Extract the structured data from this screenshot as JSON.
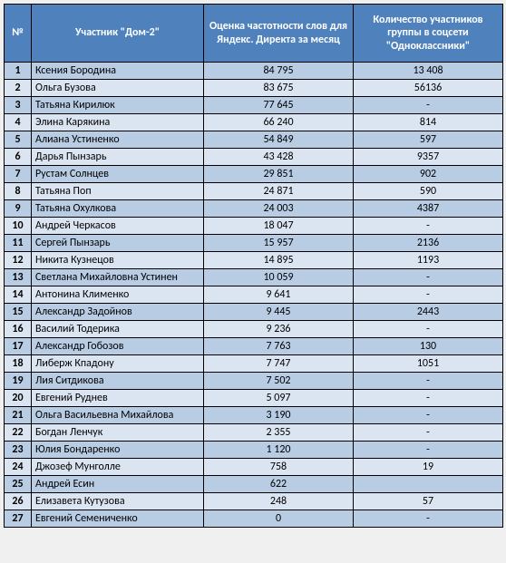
{
  "table": {
    "columns": [
      "№",
      "Участник \"Дом-2\"",
      "Оценка частотности слов для Яндекс. Директа за месяц",
      "Количество участников группы в соцсети \"Одноклассники\""
    ],
    "colors": {
      "header_bg": "#4f81bd",
      "header_fg": "#ffffff",
      "row_odd_bg": "#b8cce4",
      "row_even_bg": "#dbe5f1",
      "border": "#000000"
    },
    "fontsize": 12,
    "rows": [
      {
        "n": "1",
        "name": "Ксения Бородина",
        "freq": "84 795",
        "grp": "13 408"
      },
      {
        "n": "2",
        "name": "Ольга Бузова",
        "freq": "83 675",
        "grp": "56136"
      },
      {
        "n": "3",
        "name": "Татьяна Кирилюк",
        "freq": "77 645",
        "grp": "-"
      },
      {
        "n": "4",
        "name": "Элина Карякина",
        "freq": "66 240",
        "grp": "814"
      },
      {
        "n": "5",
        "name": "Алиана Устиненко",
        "freq": "54 849",
        "grp": "597"
      },
      {
        "n": "6",
        "name": "Дарья Пынзарь",
        "freq": "43 428",
        "grp": "9357"
      },
      {
        "n": "7",
        "name": "Рустам Солнцев",
        "freq": "29 851",
        "grp": "902"
      },
      {
        "n": "8",
        "name": "Татьяна Поп",
        "freq": "24 871",
        "grp": "590"
      },
      {
        "n": "9",
        "name": "Татьяна Охулкова",
        "freq": "24 003",
        "grp": "4387"
      },
      {
        "n": "10",
        "name": "Андрей Черкасов",
        "freq": "18 047",
        "grp": "-"
      },
      {
        "n": "11",
        "name": "Сергей Пынзарь",
        "freq": "15 957",
        "grp": "2136"
      },
      {
        "n": "12",
        "name": "Никита Кузнецов",
        "freq": "14 895",
        "grp": "1193"
      },
      {
        "n": "13",
        "name": "Светлана Михайловна Устинен",
        "freq": "10 059",
        "grp": "-"
      },
      {
        "n": "14",
        "name": "Антонина Клименко",
        "freq": "9 641",
        "grp": "-"
      },
      {
        "n": "15",
        "name": "Александр Задойнов",
        "freq": "9 445",
        "grp": "2443"
      },
      {
        "n": "16",
        "name": "Василий Тодерика",
        "freq": "9 236",
        "grp": "-"
      },
      {
        "n": "17",
        "name": "Александр Гобозов",
        "freq": "7 763",
        "grp": "130"
      },
      {
        "n": "18",
        "name": "Либерж Кпадону",
        "freq": "7 747",
        "grp": "1051"
      },
      {
        "n": "19",
        "name": "Лия Ситдикова",
        "freq": "7 502",
        "grp": "-"
      },
      {
        "n": "20",
        "name": "Евгений Руднев",
        "freq": "5 097",
        "grp": "-"
      },
      {
        "n": "21",
        "name": "Ольга Васильевна Михайлова",
        "freq": "3 190",
        "grp": "-"
      },
      {
        "n": "22",
        "name": "Богдан Ленчук",
        "freq": "2 355",
        "grp": "-"
      },
      {
        "n": "23",
        "name": "Юлия Бондаренко",
        "freq": "1 120",
        "grp": "-"
      },
      {
        "n": "24",
        "name": "Джозеф Мунголле",
        "freq": "758",
        "grp": "19"
      },
      {
        "n": "25",
        "name": "Андрей Есин",
        "freq": "622",
        "grp": ""
      },
      {
        "n": "26",
        "name": "Елизавета Кутузова",
        "freq": "248",
        "grp": "57"
      },
      {
        "n": "27",
        "name": "Евгений Семениченко",
        "freq": "0",
        "grp": "-"
      }
    ]
  }
}
